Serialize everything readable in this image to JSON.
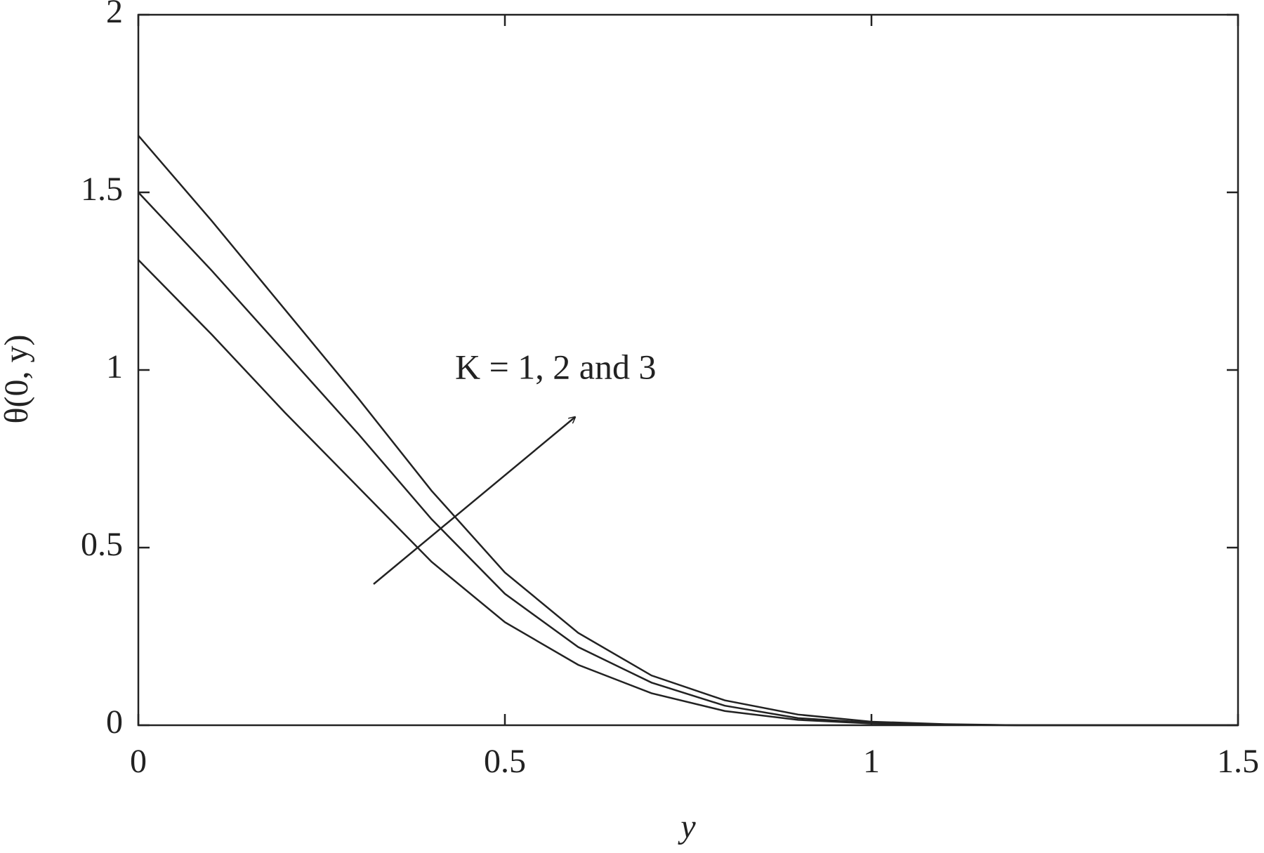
{
  "chart_data": {
    "type": "line",
    "x_label": "y",
    "y_label": "θ(0, y)",
    "annotation": "K = 1, 2 and 3",
    "x": [
      0,
      0.1,
      0.2,
      0.3,
      0.4,
      0.5,
      0.6,
      0.7,
      0.8,
      0.9,
      1.0,
      1.1,
      1.2,
      1.3,
      1.4,
      1.5
    ],
    "series": [
      {
        "color": "#222222",
        "values": [
          1.31,
          1.1,
          0.88,
          0.67,
          0.46,
          0.29,
          0.17,
          0.09,
          0.04,
          0.015,
          0.005,
          0.001,
          0,
          0,
          0,
          0
        ]
      },
      {
        "color": "#222222",
        "values": [
          1.5,
          1.28,
          1.05,
          0.82,
          0.58,
          0.37,
          0.22,
          0.12,
          0.055,
          0.02,
          0.007,
          0.002,
          0,
          0,
          0,
          0
        ]
      },
      {
        "color": "#222222",
        "values": [
          1.66,
          1.42,
          1.17,
          0.92,
          0.66,
          0.43,
          0.26,
          0.14,
          0.07,
          0.03,
          0.01,
          0.003,
          0,
          0,
          0,
          0
        ]
      }
    ],
    "xlim": [
      0,
      1.5
    ],
    "xticks": [
      0,
      0.5,
      1,
      1.5
    ],
    "ylim": [
      0,
      2
    ],
    "yticks": [
      0,
      0.5,
      1,
      1.5,
      2
    ]
  }
}
